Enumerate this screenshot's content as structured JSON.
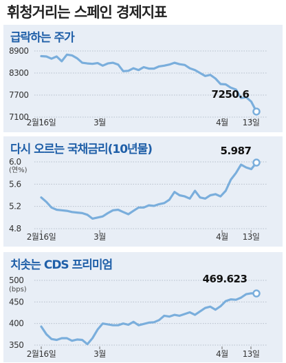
{
  "main_title": "휘청거리는 스페인 경제지표",
  "chart_data": [
    {
      "type": "line",
      "title": "급락하는 주가",
      "unit": "",
      "yticks": [
        "8900",
        "8300",
        "7700",
        "7100"
      ],
      "ylim": [
        7100,
        8900
      ],
      "xticks": [
        "2월16일",
        "3월",
        "4월",
        "13일"
      ],
      "end_label": "7250.6",
      "color": "#7aaedc",
      "series": [
        {
          "x": [
            0,
            1,
            2,
            3,
            4,
            5,
            6,
            7,
            8,
            9,
            10,
            11,
            12,
            13,
            14,
            15,
            16,
            17,
            18,
            19,
            20,
            21,
            22,
            23,
            24,
            25,
            26,
            27,
            28,
            29,
            30,
            31,
            32,
            33,
            34,
            35,
            36,
            37,
            38,
            39,
            40,
            41,
            42
          ],
          "values": [
            8760,
            8750,
            8690,
            8750,
            8620,
            8800,
            8780,
            8700,
            8580,
            8560,
            8550,
            8570,
            8500,
            8560,
            8580,
            8530,
            8350,
            8360,
            8430,
            8380,
            8460,
            8420,
            8420,
            8480,
            8500,
            8530,
            8580,
            8540,
            8520,
            8430,
            8380,
            8300,
            8220,
            8250,
            8150,
            8000,
            7990,
            7900,
            7850,
            7620,
            7640,
            7520,
            7250.6
          ]
        }
      ]
    },
    {
      "type": "line",
      "title": "다시 오르는 국채금리(10년물)",
      "unit": "(연%)",
      "yticks": [
        "6.0",
        "5.6",
        "5.2",
        "4.8"
      ],
      "ylim": [
        4.8,
        6.0
      ],
      "xticks": [
        "2월16일",
        "3월",
        "4월",
        "13일"
      ],
      "end_label": "5.987",
      "color": "#7aaedc",
      "series": [
        {
          "x": [
            0,
            1,
            2,
            3,
            4,
            5,
            6,
            7,
            8,
            9,
            10,
            11,
            12,
            13,
            14,
            15,
            16,
            17,
            18,
            19,
            20,
            21,
            22,
            23,
            24,
            25,
            26,
            27,
            28,
            29,
            30,
            31,
            32,
            33,
            34,
            35,
            36,
            37,
            38,
            39,
            40,
            41,
            42
          ],
          "values": [
            5.36,
            5.28,
            5.18,
            5.14,
            5.13,
            5.12,
            5.1,
            5.09,
            5.08,
            5.05,
            4.98,
            5.0,
            5.02,
            5.08,
            5.13,
            5.14,
            5.1,
            5.06,
            5.12,
            5.18,
            5.18,
            5.22,
            5.21,
            5.24,
            5.26,
            5.32,
            5.46,
            5.4,
            5.38,
            5.34,
            5.48,
            5.36,
            5.34,
            5.4,
            5.42,
            5.38,
            5.48,
            5.68,
            5.8,
            5.95,
            5.9,
            5.87,
            5.987
          ]
        }
      ]
    },
    {
      "type": "line",
      "title": "치솟는 CDS 프리미엄",
      "unit": "(bps)",
      "yticks": [
        "500",
        "450",
        "400",
        "350"
      ],
      "ylim": [
        350,
        500
      ],
      "xticks": [
        "2월16일",
        "3월",
        "4월",
        "13일"
      ],
      "end_label": "469.623",
      "color": "#7aaedc",
      "series": [
        {
          "x": [
            0,
            1,
            2,
            3,
            4,
            5,
            6,
            7,
            8,
            9,
            10,
            11,
            12,
            13,
            14,
            15,
            16,
            17,
            18,
            19,
            20,
            21,
            22,
            23,
            24,
            25,
            26,
            27,
            28,
            29,
            30,
            31,
            32,
            33,
            34,
            35,
            36,
            37,
            38,
            39,
            40,
            41,
            42
          ],
          "values": [
            393,
            375,
            364,
            362,
            366,
            366,
            360,
            363,
            362,
            352,
            366,
            386,
            400,
            398,
            396,
            396,
            400,
            397,
            404,
            396,
            399,
            402,
            403,
            408,
            418,
            416,
            420,
            418,
            422,
            426,
            420,
            428,
            436,
            439,
            432,
            440,
            452,
            456,
            455,
            460,
            468,
            470,
            469.623
          ]
        }
      ]
    }
  ]
}
